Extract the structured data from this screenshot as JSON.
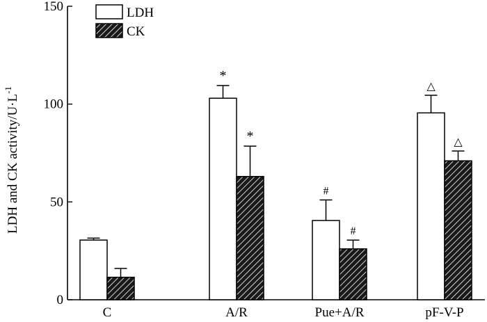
{
  "chart_data": {
    "type": "bar",
    "title": "",
    "xlabel": "",
    "ylabel": "LDH and CK activity/U·L",
    "ylabel_superscript": "-1",
    "ylim": [
      0,
      150
    ],
    "yticks": [
      0,
      50,
      100,
      150
    ],
    "categories": [
      "C",
      "A/R",
      "Pue+A/R",
      "pF-V-P"
    ],
    "legend_position": "top-left",
    "series": [
      {
        "name": "LDH",
        "fill": "white",
        "values": [
          30.5,
          103,
          40.5,
          95.5
        ],
        "errors": [
          1,
          6.5,
          10.5,
          9
        ],
        "markers": [
          "",
          "*",
          "#",
          "△"
        ]
      },
      {
        "name": "CK",
        "fill": "hatched",
        "values": [
          11.5,
          63,
          26,
          71
        ],
        "errors": [
          4.5,
          15.5,
          4.5,
          5
        ],
        "markers": [
          "",
          "*",
          "#",
          "△"
        ]
      }
    ]
  },
  "colors": {
    "axis": "#000000",
    "bar_stroke": "#000000",
    "ldh_fill": "#ffffff",
    "ck_fill": "#1a1a1a",
    "hatch_line": "#ffffff"
  }
}
